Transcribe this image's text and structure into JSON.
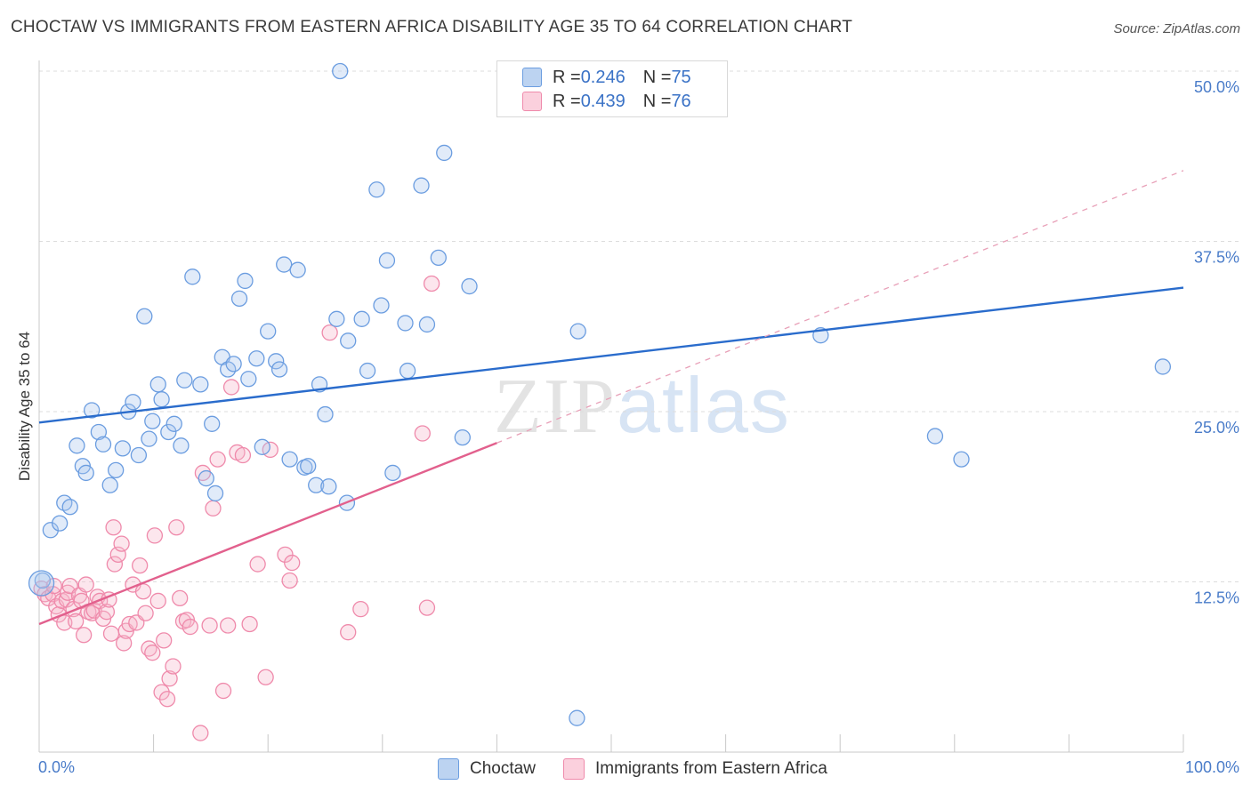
{
  "title": "CHOCTAW VS IMMIGRANTS FROM EASTERN AFRICA DISABILITY AGE 35 TO 64 CORRELATION CHART",
  "source": "Source: ZipAtlas.com",
  "watermark": {
    "zip": "ZIP",
    "atlas": "atlas"
  },
  "legend": {
    "rows": [
      {
        "r_label": "R = ",
        "r_value": "0.246",
        "n_label": "N = ",
        "n_value": "75",
        "color": "#a9c7ee"
      },
      {
        "r_label": "R = ",
        "r_value": "0.439",
        "n_label": "N = ",
        "n_value": "76",
        "color": "#f7b8cb"
      }
    ]
  },
  "bottom_legend": {
    "series1": "Choctaw",
    "series2": "Immigrants from Eastern Africa"
  },
  "chart_data": {
    "type": "scatter",
    "title": "CHOCTAW VS IMMIGRANTS FROM EASTERN AFRICA DISABILITY AGE 35 TO 64 CORRELATION CHART",
    "xlabel": "",
    "ylabel": "Disability Age 35 to 64",
    "xlim": [
      0,
      100
    ],
    "ylim": [
      0,
      50
    ],
    "x_tick_labels": [
      "0.0%",
      "100.0%"
    ],
    "y_ticks": [
      12.5,
      25.0,
      37.5,
      50.0
    ],
    "y_tick_labels": [
      "12.5%",
      "25.0%",
      "37.5%",
      "50.0%"
    ],
    "grid": true,
    "series": [
      {
        "name": "Choctaw",
        "color": "#6b9de0",
        "trend": {
          "x": [
            0,
            100
          ],
          "y": [
            24.2,
            34.1
          ],
          "color": "#2a6ccc"
        },
        "points": [
          [
            0.3,
            12.6
          ],
          [
            1,
            16.3
          ],
          [
            1.8,
            16.8
          ],
          [
            2.2,
            18.3
          ],
          [
            2.7,
            18
          ],
          [
            3.3,
            22.5
          ],
          [
            3.8,
            21
          ],
          [
            4.1,
            20.5
          ],
          [
            4.6,
            25.1
          ],
          [
            5.2,
            23.5
          ],
          [
            5.6,
            22.6
          ],
          [
            6.2,
            19.6
          ],
          [
            6.7,
            20.7
          ],
          [
            7.3,
            22.3
          ],
          [
            7.8,
            25
          ],
          [
            8.2,
            25.7
          ],
          [
            8.7,
            21.8
          ],
          [
            9.2,
            32
          ],
          [
            9.6,
            23
          ],
          [
            9.9,
            24.3
          ],
          [
            10.4,
            27
          ],
          [
            10.7,
            25.9
          ],
          [
            11.3,
            23.5
          ],
          [
            11.8,
            24.1
          ],
          [
            12.4,
            22.5
          ],
          [
            12.7,
            27.3
          ],
          [
            13.4,
            34.9
          ],
          [
            14.1,
            27
          ],
          [
            14.6,
            20.1
          ],
          [
            15.1,
            24.1
          ],
          [
            15.4,
            19
          ],
          [
            16,
            29
          ],
          [
            16.5,
            28.1
          ],
          [
            17,
            28.5
          ],
          [
            17.5,
            33.3
          ],
          [
            18,
            34.6
          ],
          [
            18.3,
            27.4
          ],
          [
            19,
            28.9
          ],
          [
            19.5,
            22.4
          ],
          [
            20,
            30.9
          ],
          [
            20.7,
            28.7
          ],
          [
            21,
            28.1
          ],
          [
            21.4,
            35.8
          ],
          [
            21.9,
            21.5
          ],
          [
            22.6,
            35.4
          ],
          [
            23.2,
            20.9
          ],
          [
            23.5,
            21
          ],
          [
            24.5,
            27
          ],
          [
            25,
            24.8
          ],
          [
            24.2,
            19.6
          ],
          [
            25.3,
            19.5
          ],
          [
            26,
            31.8
          ],
          [
            26.9,
            18.3
          ],
          [
            27,
            30.2
          ],
          [
            28.2,
            31.8
          ],
          [
            28.7,
            28
          ],
          [
            29.9,
            32.8
          ],
          [
            29.5,
            41.3
          ],
          [
            30.4,
            36.1
          ],
          [
            30.9,
            20.5
          ],
          [
            32,
            31.5
          ],
          [
            32.2,
            28
          ],
          [
            33.4,
            41.6
          ],
          [
            33.9,
            31.4
          ],
          [
            34.9,
            36.3
          ],
          [
            35.4,
            44
          ],
          [
            37,
            23.1
          ],
          [
            37.6,
            34.2
          ],
          [
            47,
            2.5
          ],
          [
            47.1,
            30.9
          ],
          [
            68.3,
            30.6
          ],
          [
            78.3,
            23.2
          ],
          [
            80.6,
            21.5
          ],
          [
            98.2,
            28.3
          ],
          [
            26.3,
            50
          ]
        ]
      },
      {
        "name": "Immigrants from Eastern Africa",
        "color": "#ef8aab",
        "trend": {
          "x": [
            0,
            40
          ],
          "y": [
            9.4,
            22.7
          ],
          "color": "#e2608d"
        },
        "trend_dashed": {
          "x": [
            40,
            100
          ],
          "y": [
            22.7,
            42.7
          ],
          "color": "#e8a0b8"
        },
        "points": [
          [
            0.2,
            12
          ],
          [
            0.5,
            11.6
          ],
          [
            0.8,
            11.3
          ],
          [
            1.2,
            11.6
          ],
          [
            1.3,
            12.2
          ],
          [
            1.5,
            10.7
          ],
          [
            1.7,
            10.1
          ],
          [
            2,
            11.1
          ],
          [
            2.2,
            9.5
          ],
          [
            2.4,
            11.2
          ],
          [
            2.5,
            11.7
          ],
          [
            2.7,
            12.2
          ],
          [
            3,
            10.5
          ],
          [
            3.2,
            9.6
          ],
          [
            3.5,
            11.5
          ],
          [
            3.7,
            11.1
          ],
          [
            3.9,
            8.6
          ],
          [
            4.1,
            12.3
          ],
          [
            4.3,
            10.3
          ],
          [
            4.6,
            10.2
          ],
          [
            4.8,
            10.4
          ],
          [
            5.1,
            11.4
          ],
          [
            5.3,
            11.1
          ],
          [
            5.6,
            9.8
          ],
          [
            5.9,
            10.3
          ],
          [
            6.1,
            11.2
          ],
          [
            6.3,
            8.7
          ],
          [
            6.6,
            13.8
          ],
          [
            6.9,
            14.5
          ],
          [
            7.2,
            15.3
          ],
          [
            7.4,
            8
          ],
          [
            7.6,
            8.9
          ],
          [
            7.9,
            9.4
          ],
          [
            8.2,
            12.3
          ],
          [
            8.5,
            9.5
          ],
          [
            8.8,
            13.7
          ],
          [
            9.1,
            11.8
          ],
          [
            9.3,
            10.2
          ],
          [
            9.6,
            7.6
          ],
          [
            9.9,
            7.3
          ],
          [
            10.1,
            15.9
          ],
          [
            10.4,
            11.1
          ],
          [
            10.7,
            4.4
          ],
          [
            10.9,
            8.2
          ],
          [
            11.2,
            3.9
          ],
          [
            11.4,
            5.4
          ],
          [
            11.7,
            6.3
          ],
          [
            12,
            16.5
          ],
          [
            12.3,
            11.3
          ],
          [
            12.6,
            9.6
          ],
          [
            12.9,
            9.7
          ],
          [
            13.2,
            9.2
          ],
          [
            14.1,
            1.4
          ],
          [
            14.3,
            20.5
          ],
          [
            14.9,
            9.3
          ],
          [
            15.2,
            17.9
          ],
          [
            15.6,
            21.5
          ],
          [
            16.1,
            4.5
          ],
          [
            16.5,
            9.3
          ],
          [
            16.8,
            26.8
          ],
          [
            17.3,
            22
          ],
          [
            17.8,
            21.8
          ],
          [
            18.4,
            9.4
          ],
          [
            19.1,
            13.8
          ],
          [
            19.8,
            5.5
          ],
          [
            20.2,
            22.2
          ],
          [
            21.5,
            14.5
          ],
          [
            21.9,
            12.6
          ],
          [
            22.1,
            13.9
          ],
          [
            25.4,
            30.8
          ],
          [
            27,
            8.8
          ],
          [
            28.1,
            10.5
          ],
          [
            33.5,
            23.4
          ],
          [
            33.9,
            10.6
          ],
          [
            34.3,
            34.4
          ],
          [
            6.5,
            16.5
          ]
        ]
      }
    ]
  }
}
